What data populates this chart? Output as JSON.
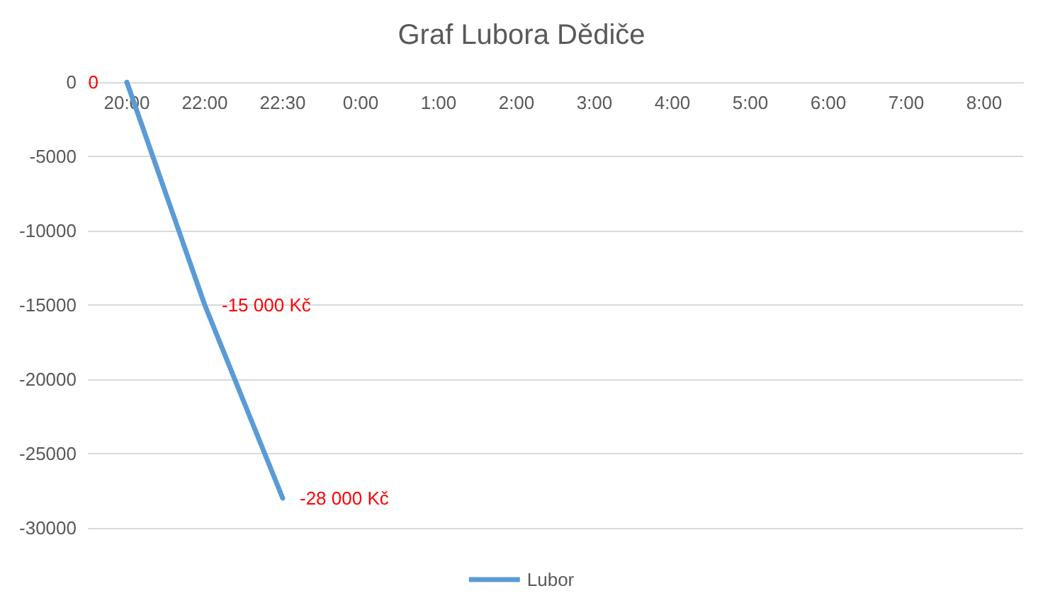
{
  "chart_data": {
    "type": "line",
    "title": "Graf Lubora Dědiče",
    "categories": [
      "20:00",
      "22:00",
      "22:30",
      "0:00",
      "1:00",
      "2:00",
      "3:00",
      "4:00",
      "5:00",
      "6:00",
      "7:00",
      "8:00"
    ],
    "series": [
      {
        "name": "Lubor",
        "color": "#5b9bd5",
        "values": [
          0,
          -15000,
          -28000,
          null,
          null,
          null,
          null,
          null,
          null,
          null,
          null,
          null
        ],
        "value_labels": [
          "0",
          "-15 000 Kč",
          "-28 000 Kč",
          null,
          null,
          null,
          null,
          null,
          null,
          null,
          null,
          null
        ]
      }
    ],
    "ylim": [
      -30000,
      0
    ],
    "yticks": [
      0,
      -5000,
      -10000,
      -15000,
      -20000,
      -25000,
      -30000
    ],
    "grid": "y",
    "legend": "bottom",
    "marker": "none",
    "line_style": "solid"
  }
}
